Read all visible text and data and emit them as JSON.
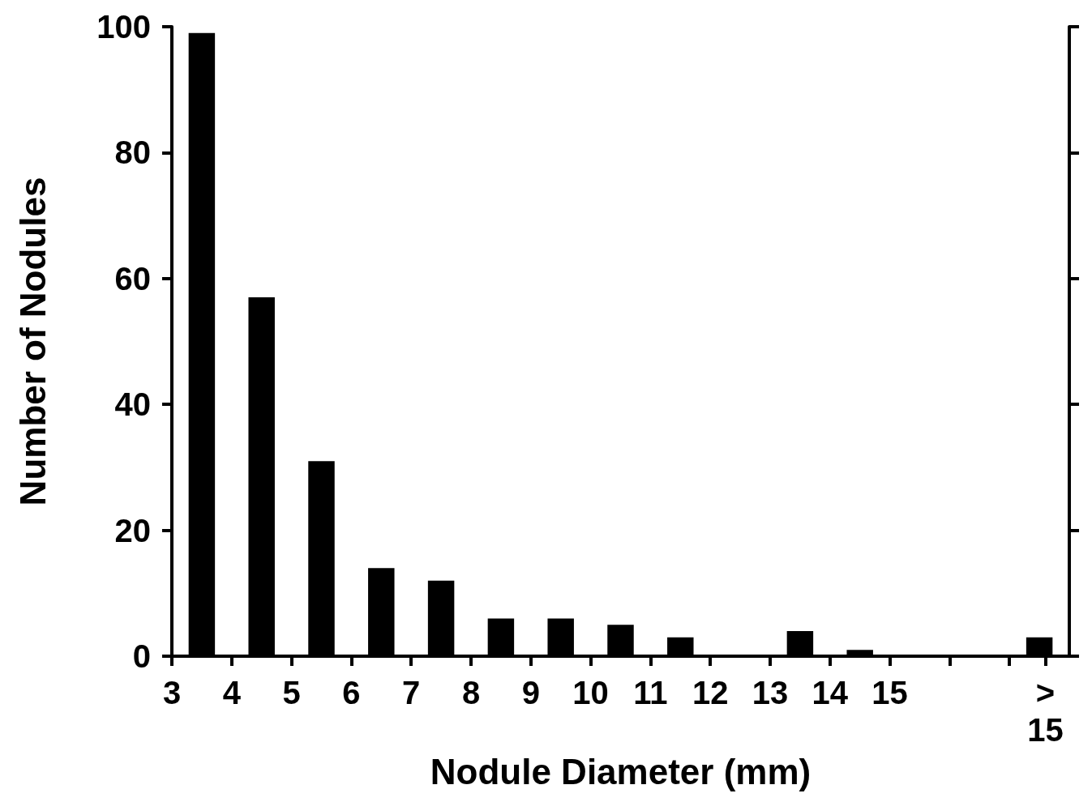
{
  "chart_data": {
    "type": "histogram",
    "xlabel": "Nodule Diameter (mm)",
    "ylabel": "Number of Nodules",
    "bins": [
      3,
      4,
      5,
      6,
      7,
      8,
      9,
      10,
      11,
      12,
      13,
      14,
      15,
      16,
      17,
      18
    ],
    "values": [
      99,
      57,
      31,
      14,
      12,
      6,
      6,
      5,
      3,
      0,
      4,
      1,
      0,
      0,
      3
    ],
    "color": "#000000",
    "xlim": [
      3,
      18
    ],
    "xticks": [
      3,
      4,
      5,
      6,
      7,
      8,
      9,
      10,
      11,
      12,
      13,
      14,
      15,
      {
        "value": 16,
        "label": null
      },
      {
        "value": 17,
        "label": null
      },
      {
        "value": 17.6,
        "label": ">\n15"
      }
    ],
    "ylim": [
      0,
      100
    ],
    "yticks": [
      0,
      20,
      40,
      60,
      80,
      100
    ],
    "grid": false
  }
}
